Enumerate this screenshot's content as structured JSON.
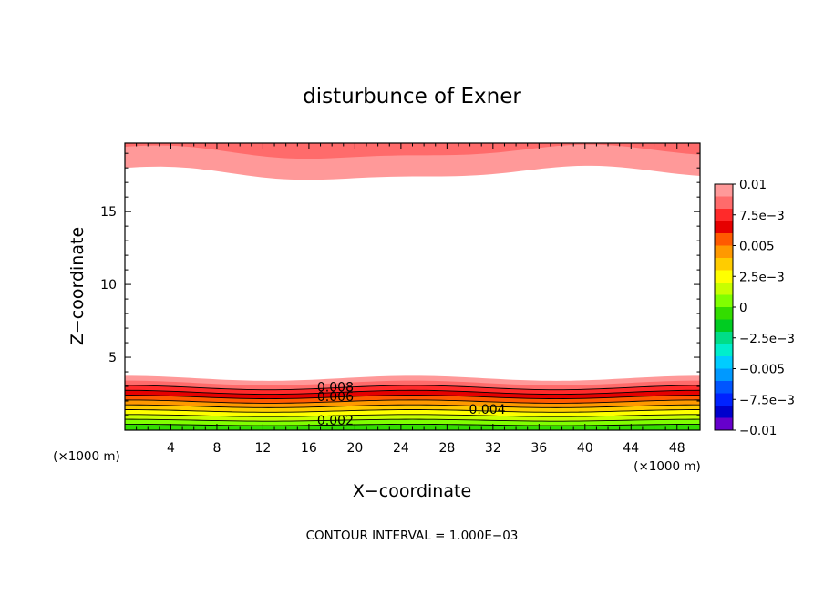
{
  "chart_data": {
    "type": "heatmap",
    "title": "disturbunce of Exner",
    "xlabel": "X−coordinate",
    "ylabel": "Z−coordinate",
    "x_unit": "(×1000 m)",
    "x_unit_right": "(×1000 m)",
    "xlim": [
      0,
      50
    ],
    "ylim": [
      0,
      19.7
    ],
    "x_ticks": [
      "4",
      "8",
      "12",
      "16",
      "20",
      "24",
      "28",
      "32",
      "36",
      "40",
      "44",
      "48"
    ],
    "y_ticks": [
      "5",
      "10",
      "15"
    ],
    "contour_labels": [
      "0.008",
      "0.006",
      "0.004",
      "0.002"
    ],
    "footer": "CONTOUR INTERVAL = 1.000E−03",
    "colorbar": {
      "labels": [
        "0.01",
        "7.5e−3",
        "0.005",
        "2.5e−3",
        "0",
        "−2.5e−3",
        "−0.005",
        "−7.5e−3",
        "−0.01"
      ],
      "colors": [
        "#ff9999",
        "#ff6b6b",
        "#ff2a2a",
        "#e60000",
        "#ff5a00",
        "#ff9900",
        "#ffcc00",
        "#ffff00",
        "#c8ff00",
        "#80ff00",
        "#33dd00",
        "#00cc22",
        "#00dd88",
        "#00eecc",
        "#00ccff",
        "#0099ff",
        "#0055ff",
        "#0022ff",
        "#0000cc",
        "#6600cc"
      ],
      "range": [
        -0.01,
        0.01
      ]
    },
    "contour_interval": 0.001
  }
}
